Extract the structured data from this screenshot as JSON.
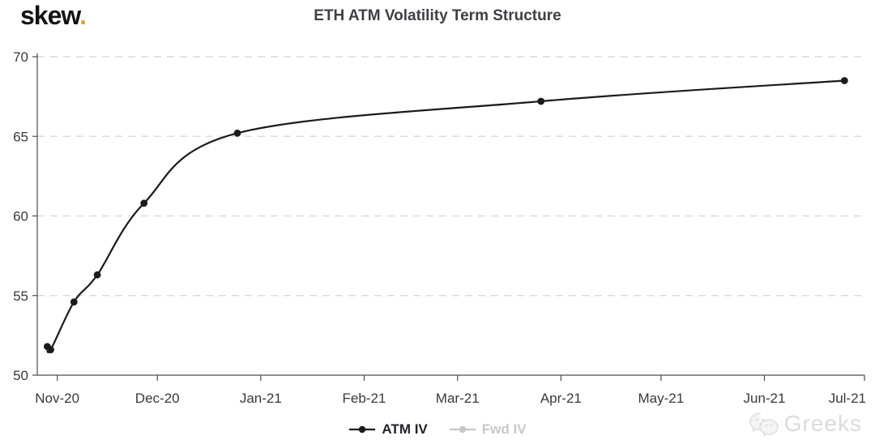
{
  "logo": {
    "text": "skew",
    "dot": ".",
    "dot_color": "#d7a03f"
  },
  "watermark": {
    "text": "Greeks",
    "icon": "wechat-icon"
  },
  "chart_data": {
    "type": "line",
    "title": "ETH ATM Volatility Term Structure",
    "grid": "horizontal-dashed",
    "legend_position": "bottom-center",
    "colors": {
      "axis": "#4c4c4c",
      "grid": "#dcdcdc",
      "background": "#ffffff"
    },
    "x_axis": {
      "min_date": "2020-10-26",
      "max_date": "2021-07-01",
      "ticks": [
        {
          "date": "2020-11-01",
          "label": "Nov-20"
        },
        {
          "date": "2020-12-01",
          "label": "Dec-20"
        },
        {
          "date": "2021-01-01",
          "label": "Jan-21"
        },
        {
          "date": "2021-02-01",
          "label": "Feb-21"
        },
        {
          "date": "2021-03-01",
          "label": "Mar-21"
        },
        {
          "date": "2021-04-01",
          "label": "Apr-21"
        },
        {
          "date": "2021-05-01",
          "label": "May-21"
        },
        {
          "date": "2021-06-01",
          "label": "Jun-21"
        },
        {
          "date": "2021-07-01",
          "label": "Jul-21"
        }
      ]
    },
    "y_axis": {
      "min": 50,
      "max": 70,
      "ticks": [
        50,
        55,
        60,
        65,
        70
      ]
    },
    "series": [
      {
        "name": "ATM IV",
        "color": "#1b1b1b",
        "active": true,
        "points": [
          {
            "date": "2020-10-29",
            "value": 51.8
          },
          {
            "date": "2020-10-30",
            "value": 51.6
          },
          {
            "date": "2020-11-06",
            "value": 54.6
          },
          {
            "date": "2020-11-13",
            "value": 56.3
          },
          {
            "date": "2020-11-27",
            "value": 60.8
          },
          {
            "date": "2020-12-25",
            "value": 65.2
          },
          {
            "date": "2021-03-26",
            "value": 67.2
          },
          {
            "date": "2021-06-25",
            "value": 68.5
          }
        ]
      },
      {
        "name": "Fwd IV",
        "color": "#c7c7c7",
        "active": false,
        "points": []
      }
    ]
  }
}
